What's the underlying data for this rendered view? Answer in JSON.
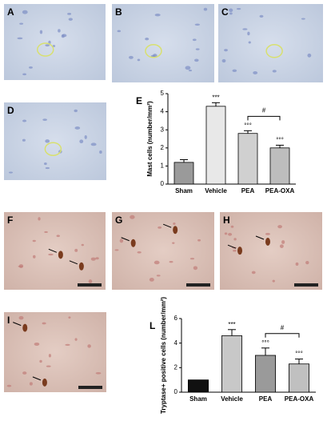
{
  "panels": [
    "A",
    "B",
    "C",
    "D",
    "F",
    "G",
    "H",
    "I"
  ],
  "chart_data": [
    {
      "type": "bar",
      "label": "E",
      "ylabel": "Mast cells (number/mm²)",
      "categories": [
        "Sham",
        "Vehicle",
        "PEA",
        "PEA-OXA"
      ],
      "values": [
        1.2,
        4.3,
        2.8,
        2.0
      ],
      "errors": [
        0.15,
        0.2,
        0.15,
        0.15
      ],
      "colors": [
        "#9a9a9a",
        "#e8e8e8",
        "#d0d0d0",
        "#bdbdbd"
      ],
      "annotations": [
        null,
        "***",
        "°°°",
        "°°°"
      ],
      "bracket_label": "#",
      "ylim": [
        0,
        5
      ],
      "yticks": [
        0,
        1,
        2,
        3,
        4,
        5
      ]
    },
    {
      "type": "bar",
      "label": "L",
      "ylabel": "Tryptase+ positive cells (number/mm²)",
      "categories": [
        "Sham",
        "Vehicle",
        "PEA",
        "PEA-OXA"
      ],
      "values": [
        1.0,
        4.6,
        3.0,
        2.3
      ],
      "errors": [
        0,
        0.5,
        0.6,
        0.4
      ],
      "colors": [
        "#111111",
        "#c8c8c8",
        "#9a9a9a",
        "#c0c0c0"
      ],
      "annotations": [
        null,
        "***",
        "°°°",
        "°°°"
      ],
      "bracket_label": "#",
      "ylim": [
        0,
        6
      ],
      "yticks": [
        0,
        2,
        4,
        6
      ]
    }
  ]
}
